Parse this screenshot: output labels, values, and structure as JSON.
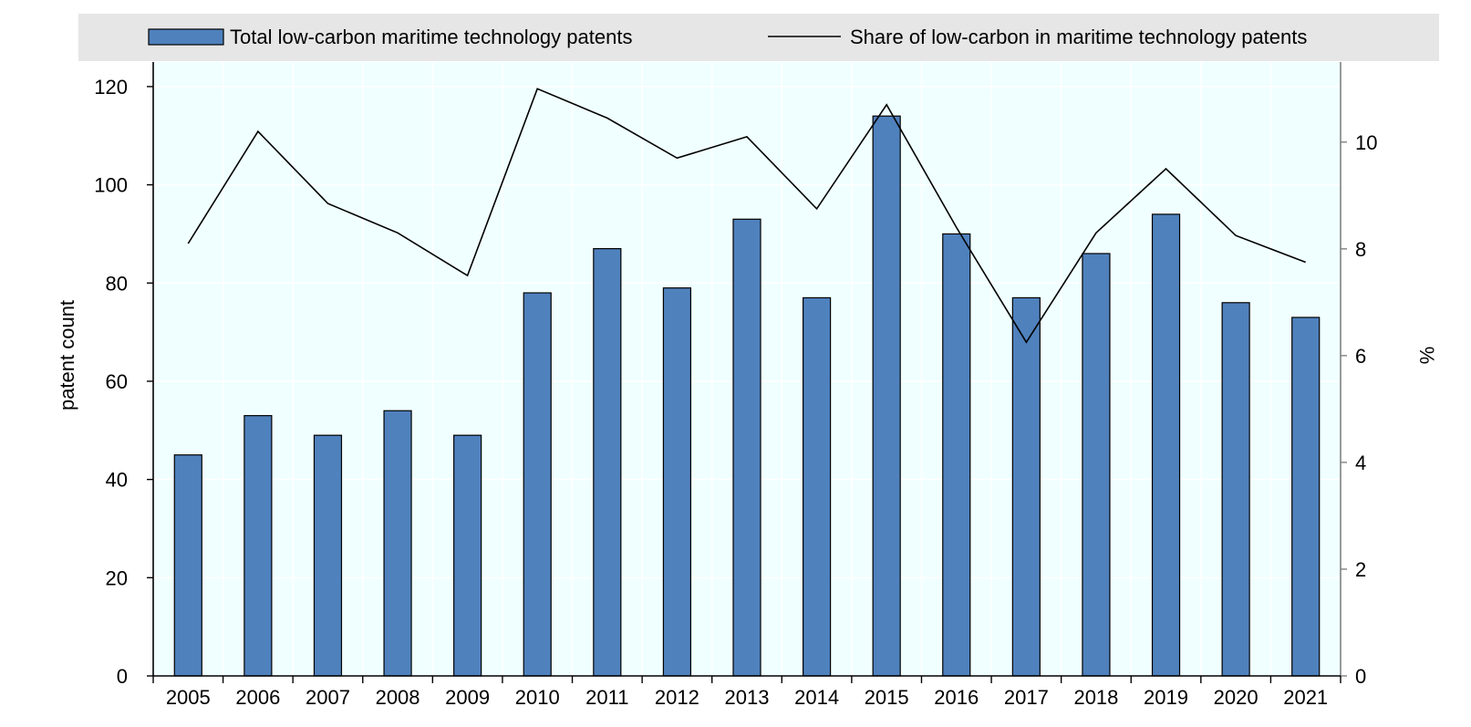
{
  "chart_data": {
    "type": "bar",
    "categories": [
      "2005",
      "2006",
      "2007",
      "2008",
      "2009",
      "2010",
      "2011",
      "2012",
      "2013",
      "2014",
      "2015",
      "2016",
      "2017",
      "2018",
      "2019",
      "2020",
      "2021"
    ],
    "series": [
      {
        "name": "Total low-carbon maritime technology patents",
        "kind": "bar",
        "axis": "left",
        "color": "#4f81bd",
        "values": [
          45,
          53,
          49,
          54,
          49,
          78,
          87,
          79,
          93,
          77,
          114,
          90,
          77,
          86,
          94,
          76,
          73
        ]
      },
      {
        "name": "Share of low-carbon in maritime technology patents",
        "kind": "line",
        "axis": "right",
        "color": "#000000",
        "values": [
          8.1,
          10.2,
          8.85,
          8.3,
          7.5,
          11.0,
          10.45,
          9.7,
          10.1,
          8.75,
          10.7,
          8.4,
          6.25,
          8.3,
          9.5,
          8.25,
          7.75
        ]
      }
    ],
    "ylabel": "patent count",
    "ylim": [
      0,
      125
    ],
    "yticks": [
      0,
      20,
      40,
      60,
      80,
      100,
      120
    ],
    "y2label": "%",
    "y2lim": [
      0,
      11.5
    ],
    "y2ticks": [
      0,
      2,
      4,
      6,
      8,
      10
    ],
    "legend_position": "top",
    "grid": true,
    "plot_background": "#f0ffff",
    "legend_background": "#e6e6e6"
  }
}
